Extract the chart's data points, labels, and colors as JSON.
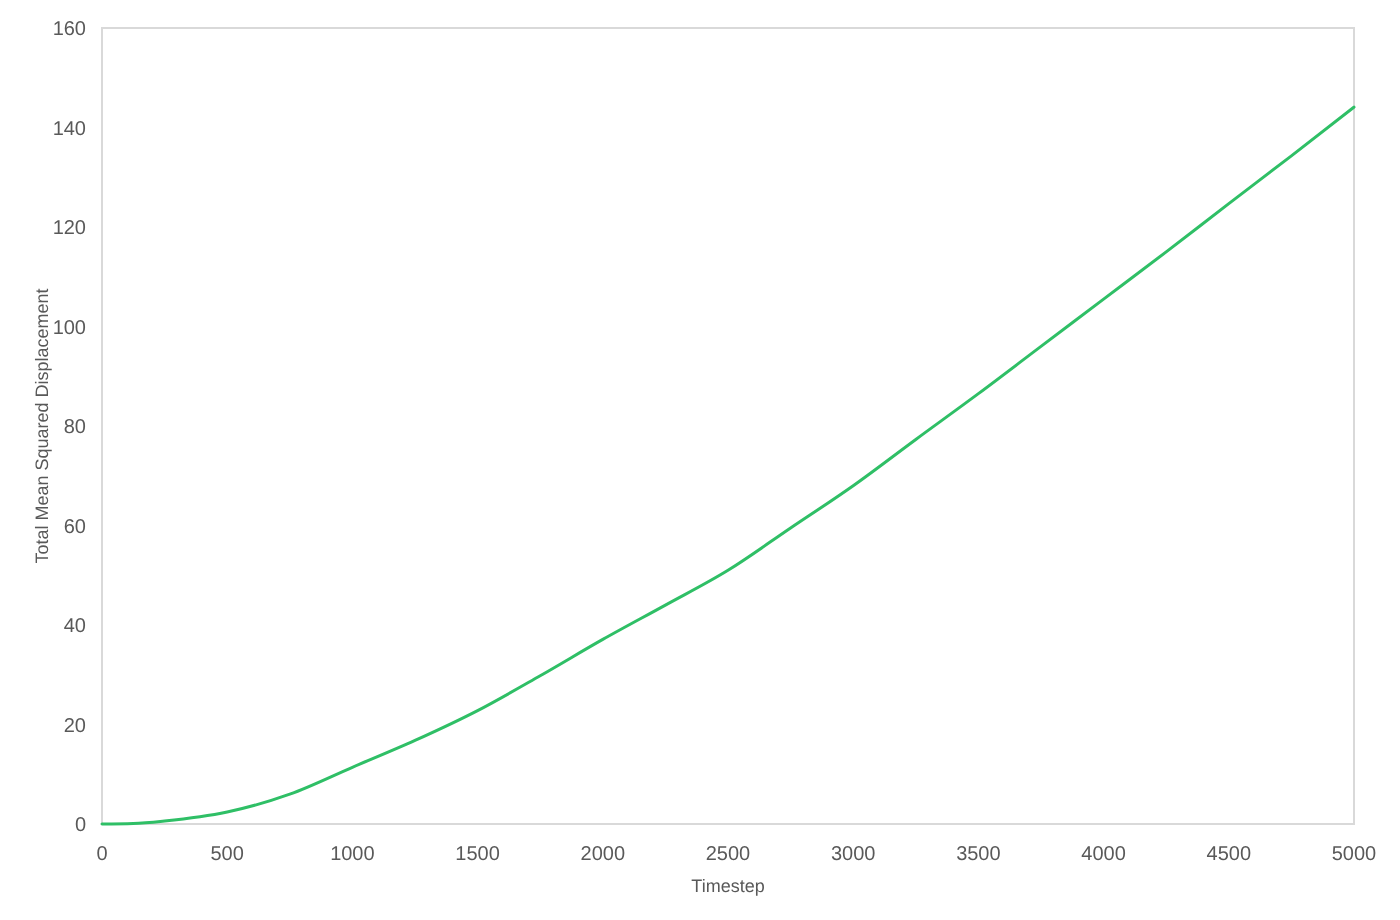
{
  "chart_data": {
    "type": "line",
    "xlabel": "Timestep",
    "ylabel": "Total Mean Squared Displacement",
    "x": [
      0,
      125,
      250,
      500,
      750,
      1000,
      1250,
      1500,
      1750,
      2000,
      2250,
      2500,
      2750,
      3000,
      3250,
      3500,
      3750,
      4000,
      4250,
      4500,
      4750,
      5000
    ],
    "series": [
      {
        "color": "#2fbf66",
        "values": [
          0,
          0.1,
          0.6,
          2.4,
          6,
          11.4,
          16.8,
          22.8,
          29.8,
          37.1,
          44,
          51,
          59.5,
          68,
          77.3,
          86.5,
          96,
          105.5,
          115,
          124.7,
          134.3,
          144.1
        ]
      }
    ],
    "xlim": [
      0,
      5000
    ],
    "ylim": [
      0,
      160
    ],
    "xticks": [
      0,
      500,
      1000,
      1500,
      2000,
      2500,
      3000,
      3500,
      4000,
      4500,
      5000
    ],
    "yticks": [
      0,
      20,
      40,
      60,
      80,
      100,
      120,
      140,
      160
    ],
    "grid": false,
    "marker": "none",
    "line_style": "solid"
  }
}
